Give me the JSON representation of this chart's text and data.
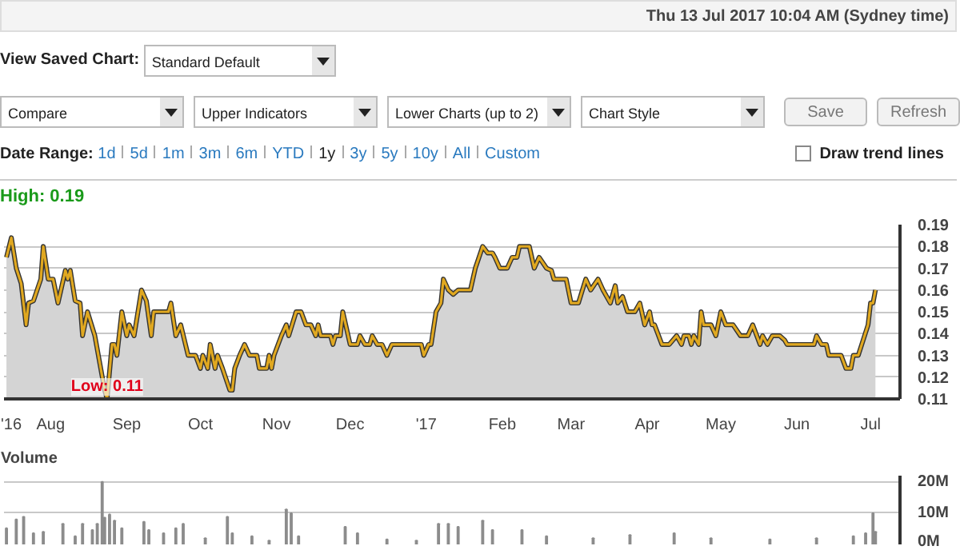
{
  "chart_data": [
    {
      "type": "area",
      "xlim": [
        "2016-07-13",
        "2017-07-13"
      ],
      "ylim": [
        0.11,
        0.19
      ],
      "yticks": [
        0.11,
        0.12,
        0.13,
        0.14,
        0.15,
        0.16,
        0.17,
        0.18,
        0.19
      ],
      "xticks": [
        {
          "value": "2016-07-15",
          "label": "'16"
        },
        {
          "value": "2016-08-01",
          "label": "Aug"
        },
        {
          "value": "2016-09-01",
          "label": "Sep"
        },
        {
          "value": "2016-10-01",
          "label": "Oct"
        },
        {
          "value": "2016-11-01",
          "label": "Nov"
        },
        {
          "value": "2016-12-01",
          "label": "Dec"
        },
        {
          "value": "2017-01-01",
          "label": "'17"
        },
        {
          "value": "2017-02-01",
          "label": "Feb"
        },
        {
          "value": "2017-03-01",
          "label": "Mar"
        },
        {
          "value": "2017-04-01",
          "label": "Apr"
        },
        {
          "value": "2017-05-01",
          "label": "May"
        },
        {
          "value": "2017-06-01",
          "label": "Jun"
        },
        {
          "value": "2017-07-01",
          "label": "Jul"
        }
      ],
      "grid": "y",
      "annotations": [
        "Thu 13 Jul 2017 10:04 AM (Sydney time)",
        "View Saved Chart:",
        "Standard Default",
        "Compare",
        "Upper Indicators",
        "Lower Charts (up to 2)",
        "Chart Style",
        "Save",
        "Refresh",
        "Date Range:",
        "1d",
        "5d",
        "1m",
        "3m",
        "6m",
        "YTD",
        "1y",
        "3y",
        "5y",
        "10y",
        "All",
        "Custom",
        "Draw trend lines",
        "High: 0.19",
        {
          "text": "Low: 0.11",
          "x": "2016-08-24",
          "y": 0.11
        }
      ],
      "x": [
        "2016-07-14",
        "2016-07-16",
        "2016-07-18",
        "2016-07-20",
        "2016-07-22",
        "2016-07-23",
        "2016-07-25",
        "2016-07-28",
        "2016-07-29",
        "2016-07-31",
        "2016-08-02",
        "2016-08-04",
        "2016-08-07",
        "2016-08-08",
        "2016-08-09",
        "2016-08-11",
        "2016-08-13",
        "2016-08-14",
        "2016-08-16",
        "2016-08-19",
        "2016-08-23",
        "2016-08-24",
        "2016-08-26",
        "2016-08-27",
        "2016-08-28",
        "2016-08-30",
        "2016-09-01",
        "2016-09-02",
        "2016-09-04",
        "2016-09-07",
        "2016-09-09",
        "2016-09-11",
        "2016-09-12",
        "2016-09-18",
        "2016-09-19",
        "2016-09-21",
        "2016-09-23",
        "2016-09-26",
        "2016-09-29",
        "2016-10-01",
        "2016-10-02",
        "2016-10-04",
        "2016-10-05",
        "2016-10-07",
        "2016-10-08",
        "2016-10-10",
        "2016-10-13",
        "2016-10-14",
        "2016-10-15",
        "2016-10-17",
        "2016-10-19",
        "2016-10-21",
        "2016-10-24",
        "2016-10-25",
        "2016-10-28",
        "2016-10-29",
        "2016-10-30",
        "2016-10-31",
        "2016-11-03",
        "2016-11-05",
        "2016-11-06",
        "2016-11-09",
        "2016-11-11",
        "2016-11-13",
        "2016-11-15",
        "2016-11-17",
        "2016-11-18",
        "2016-11-19",
        "2016-11-23",
        "2016-11-24",
        "2016-11-25",
        "2016-11-27",
        "2016-11-28",
        "2016-12-01",
        "2016-12-04",
        "2016-12-05",
        "2016-12-07",
        "2016-12-09",
        "2016-12-10",
        "2016-12-12",
        "2016-12-14",
        "2016-12-16",
        "2016-12-18",
        "2016-12-30",
        "2016-12-31",
        "2017-01-02",
        "2017-01-03",
        "2017-01-05",
        "2017-01-07",
        "2017-01-08",
        "2017-01-10",
        "2017-01-12",
        "2017-01-14",
        "2017-01-19",
        "2017-01-21",
        "2017-01-24",
        "2017-01-26",
        "2017-01-28",
        "2017-01-29",
        "2017-01-31",
        "2017-02-03",
        "2017-02-05",
        "2017-02-07",
        "2017-02-08",
        "2017-02-12",
        "2017-02-14",
        "2017-02-16",
        "2017-02-19",
        "2017-02-21",
        "2017-02-22",
        "2017-02-27",
        "2017-03-01",
        "2017-03-04",
        "2017-03-07",
        "2017-03-09",
        "2017-03-12",
        "2017-03-14",
        "2017-03-17",
        "2017-03-19",
        "2017-03-20",
        "2017-03-22",
        "2017-03-24",
        "2017-03-27",
        "2017-03-29",
        "2017-03-31",
        "2017-04-02",
        "2017-04-03",
        "2017-04-04",
        "2017-04-07",
        "2017-04-10",
        "2017-04-13",
        "2017-04-15",
        "2017-04-16",
        "2017-04-18",
        "2017-04-19",
        "2017-04-20",
        "2017-04-22",
        "2017-04-23",
        "2017-04-24",
        "2017-04-27",
        "2017-04-29",
        "2017-05-01",
        "2017-05-03",
        "2017-05-06",
        "2017-05-09",
        "2017-05-12",
        "2017-05-14",
        "2017-05-17",
        "2017-05-18",
        "2017-05-20",
        "2017-05-22",
        "2017-05-25",
        "2017-05-27",
        "2017-05-28",
        "2017-06-08",
        "2017-06-09",
        "2017-06-11",
        "2017-06-13",
        "2017-06-14",
        "2017-06-19",
        "2017-06-21",
        "2017-06-23",
        "2017-06-24",
        "2017-06-26",
        "2017-06-30",
        "2017-07-01",
        "2017-07-02",
        "2017-07-03"
      ],
      "series": [
        {
          "color": "#e0a820",
          "values": [
            0.175,
            0.184,
            0.17,
            0.163,
            0.144,
            0.154,
            0.155,
            0.165,
            0.18,
            0.165,
            0.165,
            0.154,
            0.169,
            0.165,
            0.169,
            0.155,
            0.154,
            0.139,
            0.15,
            0.139,
            0.114,
            0.11,
            0.135,
            0.135,
            0.13,
            0.15,
            0.139,
            0.144,
            0.139,
            0.16,
            0.155,
            0.139,
            0.15,
            0.15,
            0.154,
            0.139,
            0.144,
            0.13,
            0.13,
            0.124,
            0.13,
            0.124,
            0.135,
            0.124,
            0.13,
            0.124,
            0.114,
            0.114,
            0.124,
            0.13,
            0.135,
            0.13,
            0.13,
            0.124,
            0.124,
            0.13,
            0.124,
            0.13,
            0.139,
            0.144,
            0.139,
            0.15,
            0.15,
            0.144,
            0.144,
            0.139,
            0.144,
            0.139,
            0.139,
            0.135,
            0.139,
            0.139,
            0.15,
            0.135,
            0.135,
            0.139,
            0.135,
            0.135,
            0.139,
            0.135,
            0.135,
            0.13,
            0.135,
            0.135,
            0.13,
            0.135,
            0.135,
            0.15,
            0.154,
            0.165,
            0.16,
            0.158,
            0.16,
            0.16,
            0.17,
            0.18,
            0.177,
            0.177,
            0.175,
            0.17,
            0.17,
            0.175,
            0.175,
            0.18,
            0.18,
            0.17,
            0.175,
            0.17,
            0.169,
            0.165,
            0.165,
            0.154,
            0.154,
            0.165,
            0.16,
            0.165,
            0.16,
            0.154,
            0.162,
            0.154,
            0.157,
            0.15,
            0.15,
            0.154,
            0.144,
            0.15,
            0.144,
            0.144,
            0.135,
            0.135,
            0.139,
            0.135,
            0.139,
            0.139,
            0.135,
            0.139,
            0.135,
            0.15,
            0.144,
            0.144,
            0.139,
            0.15,
            0.144,
            0.144,
            0.139,
            0.139,
            0.144,
            0.135,
            0.139,
            0.135,
            0.139,
            0.139,
            0.137,
            0.135,
            0.135,
            0.139,
            0.135,
            0.135,
            0.13,
            0.13,
            0.124,
            0.124,
            0.13,
            0.13,
            0.144,
            0.154,
            0.154,
            0.16
          ]
        }
      ]
    },
    {
      "type": "bar",
      "title": "Volume",
      "xlim": [
        "2016-07-13",
        "2017-07-13"
      ],
      "ylim": [
        0,
        22
      ],
      "yticks": [
        {
          "value": 0,
          "label": "0M"
        },
        {
          "value": 10,
          "label": "10M"
        },
        {
          "value": 20,
          "label": "20M"
        }
      ],
      "grid": "y",
      "tick_labels": "y",
      "x": [
        "2016-07-14",
        "2016-07-18",
        "2016-07-21",
        "2016-07-25",
        "2016-07-29",
        "2016-08-06",
        "2016-08-11",
        "2016-08-14",
        "2016-08-18",
        "2016-08-20",
        "2016-08-22",
        "2016-08-23",
        "2016-08-25",
        "2016-08-27",
        "2016-08-30",
        "2016-09-08",
        "2016-09-10",
        "2016-09-16",
        "2016-09-21",
        "2016-09-24",
        "2016-10-03",
        "2016-10-12",
        "2016-10-14",
        "2016-10-22",
        "2016-10-29",
        "2016-11-05",
        "2016-11-07",
        "2016-11-10",
        "2016-11-29",
        "2016-12-04",
        "2016-12-16",
        "2016-12-28",
        "2017-01-06",
        "2017-01-10",
        "2017-01-14",
        "2017-01-24",
        "2017-01-28",
        "2017-02-09",
        "2017-02-19",
        "2017-03-10",
        "2017-03-25",
        "2017-04-12",
        "2017-04-27",
        "2017-05-21",
        "2017-06-09",
        "2017-06-24",
        "2017-06-29",
        "2017-07-02",
        "2017-07-03"
      ],
      "series": [
        {
          "color": "#8c8c8c",
          "values": [
            5.2,
            8,
            8.8,
            3.6,
            4,
            6.6,
            2.6,
            6.6,
            4.6,
            6.6,
            20,
            8.6,
            9.6,
            7.6,
            5.2,
            7.2,
            4.6,
            3.6,
            5.2,
            6.6,
            2,
            8.8,
            3.6,
            2.6,
            1.2,
            11.2,
            10,
            2.6,
            5.6,
            3.6,
            1.6,
            1.2,
            6.6,
            6.6,
            5.6,
            7.6,
            4.6,
            4.6,
            2.6,
            2,
            3,
            3.6,
            2,
            1.6,
            2,
            2.6,
            3.6,
            10,
            4
          ]
        }
      ]
    }
  ]
}
